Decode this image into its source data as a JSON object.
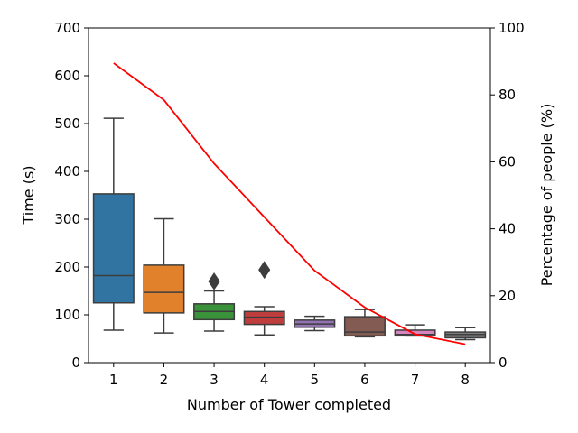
{
  "chart_data": {
    "type": "box",
    "title": "",
    "xlabel": "Number of Tower completed",
    "ylabel": "Time (s)",
    "y2label": "Percentage of people (%)",
    "categories": [
      "1",
      "2",
      "3",
      "4",
      "5",
      "6",
      "7",
      "8"
    ],
    "ylim": [
      0,
      700
    ],
    "yticks": [
      0,
      100,
      200,
      300,
      400,
      500,
      600,
      700
    ],
    "y2lim": [
      0,
      100
    ],
    "y2ticks": [
      0,
      20,
      40,
      60,
      80,
      100
    ],
    "grid": false,
    "boxes": [
      {
        "category": "1",
        "min": 68,
        "q1": 125,
        "median": 182,
        "q3": 353,
        "max": 511,
        "color": "#3274a1",
        "outliers": []
      },
      {
        "category": "2",
        "min": 62,
        "q1": 104,
        "median": 147,
        "q3": 204,
        "max": 301,
        "color": "#e1812c",
        "outliers": []
      },
      {
        "category": "3",
        "min": 66,
        "q1": 90,
        "median": 107,
        "q3": 123,
        "max": 150,
        "color": "#3a923a",
        "outliers": [
          170
        ]
      },
      {
        "category": "4",
        "min": 58,
        "q1": 80,
        "median": 95,
        "q3": 107,
        "max": 117,
        "color": "#c03d3e",
        "outliers": [
          194
        ]
      },
      {
        "category": "5",
        "min": 67,
        "q1": 74,
        "median": 81,
        "q3": 89,
        "max": 97,
        "color": "#9372b2",
        "outliers": []
      },
      {
        "category": "6",
        "min": 54,
        "q1": 56,
        "median": 64,
        "q3": 96,
        "max": 111,
        "color": "#845b53",
        "outliers": []
      },
      {
        "category": "7",
        "min": 56,
        "q1": 56,
        "median": 59,
        "q3": 68,
        "max": 79,
        "color": "#d684bd",
        "outliers": []
      },
      {
        "category": "8",
        "min": 48,
        "q1": 52,
        "median": 59,
        "q3": 64,
        "max": 73,
        "color": "#7f7f7f",
        "outliers": []
      }
    ],
    "line_series": {
      "color": "#ff0000",
      "axis": "right",
      "values": [
        89.5,
        78.5,
        59.5,
        43.5,
        27.5,
        16.5,
        8.5,
        5.5
      ]
    }
  }
}
